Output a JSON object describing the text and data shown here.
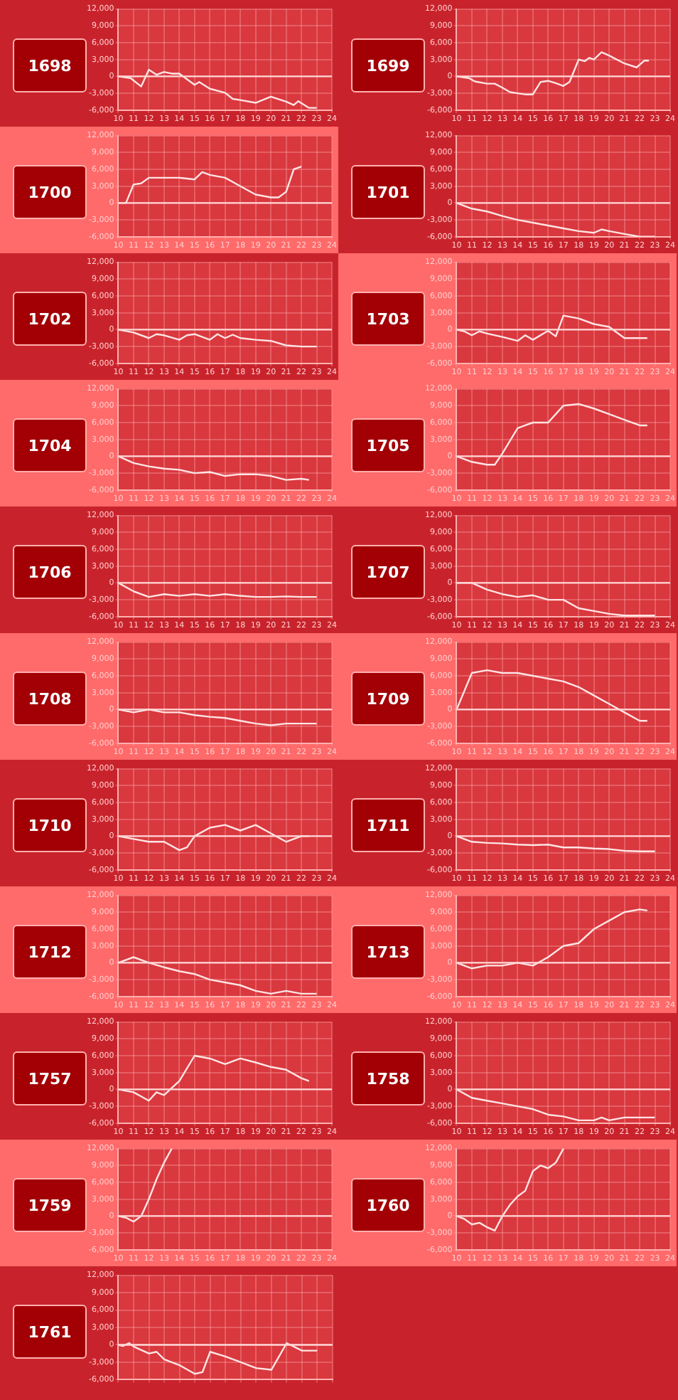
{
  "chart_data": [
    {
      "type": "line",
      "title": "1698",
      "x": [
        10,
        10.8,
        11.5,
        12,
        12.5,
        13,
        13.5,
        14,
        15,
        15.3,
        16,
        17,
        17.5,
        18,
        19,
        20,
        21,
        21.5,
        21.8,
        22.5,
        23
      ],
      "values": [
        0,
        -300,
        -1800,
        1200,
        300,
        800,
        500,
        500,
        -1500,
        -1000,
        -2200,
        -2900,
        -4000,
        -4200,
        -4700,
        -3600,
        -4500,
        -5100,
        -4400,
        -5600,
        -5600
      ],
      "color": "#ffe4e4",
      "xlim": [
        10,
        24
      ],
      "xticks": [
        10,
        11,
        12,
        13,
        14,
        15,
        16,
        17,
        18,
        19,
        20,
        21,
        22,
        23,
        24
      ],
      "ylim": [
        -6000,
        12000
      ],
      "yticks": [
        {
          "value": -6000,
          "label": "-6,000"
        },
        {
          "value": -3000,
          "label": "-3,000"
        },
        {
          "value": 0,
          "label": "0"
        },
        {
          "value": 3000,
          "label": "3,000"
        },
        {
          "value": 6000,
          "label": "6,000"
        },
        {
          "value": 9000,
          "label": "9,000"
        },
        {
          "value": 12000,
          "label": "12,000"
        }
      ],
      "grid": true,
      "ref_lines": [
        {
          "axis": "y",
          "value": 0,
          "color": "#ffd6d6"
        }
      ]
    },
    {
      "type": "line",
      "title": "1699",
      "x": [
        10,
        10.8,
        11.2,
        12,
        12.5,
        13,
        13.5,
        14,
        14.5,
        15,
        15.5,
        16,
        16.5,
        17,
        17.4,
        18,
        18.4,
        18.7,
        19,
        19.5,
        20,
        21,
        21.8,
        22.3,
        22.6
      ],
      "values": [
        0,
        -300,
        -900,
        -1300,
        -1300,
        -2000,
        -2800,
        -3000,
        -3200,
        -3200,
        -1000,
        -800,
        -1200,
        -1700,
        -1000,
        3000,
        2700,
        3300,
        3000,
        4300,
        3700,
        2300,
        1600,
        2800,
        2800
      ],
      "color": "#ffe4e4",
      "xlim": [
        10,
        24
      ],
      "xticks": [
        10,
        11,
        12,
        13,
        14,
        15,
        16,
        17,
        18,
        19,
        20,
        21,
        22,
        23,
        24
      ],
      "ylim": [
        -6000,
        12000
      ],
      "yticks": [
        {
          "value": -6000,
          "label": "-6,000"
        },
        {
          "value": -3000,
          "label": "-3,000"
        },
        {
          "value": 0,
          "label": "0"
        },
        {
          "value": 3000,
          "label": "3,000"
        },
        {
          "value": 6000,
          "label": "6,000"
        },
        {
          "value": 9000,
          "label": "9,000"
        },
        {
          "value": 12000,
          "label": "12,000"
        }
      ],
      "grid": true,
      "ref_lines": [
        {
          "axis": "y",
          "value": 0,
          "color": "#ffd6d6"
        }
      ]
    },
    {
      "type": "line",
      "title": "1700",
      "x": [
        10,
        10.5,
        11,
        11.5,
        12,
        14,
        15,
        15.5,
        16,
        17,
        18,
        19,
        20,
        20.5,
        21,
        21.5,
        22
      ],
      "values": [
        0,
        0,
        3300,
        3500,
        4500,
        4500,
        4200,
        5500,
        5000,
        4500,
        3000,
        1500,
        1000,
        1000,
        2000,
        6000,
        6500
      ],
      "color": "#ffe4e4",
      "xlim": [
        10,
        24
      ],
      "xticks": [
        10,
        11,
        12,
        13,
        14,
        15,
        16,
        17,
        18,
        19,
        20,
        21,
        22,
        23,
        24
      ],
      "ylim": [
        -6000,
        12000
      ],
      "yticks": [
        {
          "value": -6000,
          "label": "-6,000"
        },
        {
          "value": -3000,
          "label": "-3,000"
        },
        {
          "value": 0,
          "label": "0"
        },
        {
          "value": 3000,
          "label": "3,000"
        },
        {
          "value": 6000,
          "label": "6,000"
        },
        {
          "value": 9000,
          "label": "9,000"
        },
        {
          "value": 12000,
          "label": "12,000"
        }
      ],
      "grid": true,
      "ref_lines": [
        {
          "axis": "y",
          "value": 0,
          "color": "#ffd6d6"
        }
      ]
    },
    {
      "type": "line",
      "title": "1701",
      "x": [
        10,
        11,
        12,
        13,
        14,
        15,
        16,
        17,
        18,
        19,
        19.5,
        20,
        21,
        22,
        23
      ],
      "values": [
        0,
        -1000,
        -1500,
        -2300,
        -3000,
        -3500,
        -4000,
        -4500,
        -5000,
        -5300,
        -4700,
        -5000,
        -5500,
        -6000,
        -6000
      ],
      "color": "#ffe4e4",
      "xlim": [
        10,
        24
      ],
      "xticks": [
        10,
        11,
        12,
        13,
        14,
        15,
        16,
        17,
        18,
        19,
        20,
        21,
        22,
        23,
        24
      ],
      "ylim": [
        -6000,
        12000
      ],
      "yticks": [
        {
          "value": -6000,
          "label": "-6,000"
        },
        {
          "value": -3000,
          "label": "-3,000"
        },
        {
          "value": 0,
          "label": "0"
        },
        {
          "value": 3000,
          "label": "3,000"
        },
        {
          "value": 6000,
          "label": "6,000"
        },
        {
          "value": 9000,
          "label": "9,000"
        },
        {
          "value": 12000,
          "label": "12,000"
        }
      ],
      "grid": true,
      "ref_lines": [
        {
          "axis": "y",
          "value": 0,
          "color": "#ffd6d6"
        }
      ]
    },
    {
      "type": "line",
      "title": "1702",
      "x": [
        10,
        11,
        12,
        12.5,
        13,
        14,
        14.5,
        15,
        16,
        16.5,
        17,
        17.5,
        18,
        19,
        20,
        21,
        22,
        23
      ],
      "values": [
        0,
        -500,
        -1500,
        -800,
        -1000,
        -1800,
        -1000,
        -800,
        -1800,
        -800,
        -1500,
        -900,
        -1500,
        -1800,
        -2000,
        -2800,
        -3000,
        -3000
      ],
      "color": "#ffe4e4",
      "xlim": [
        10,
        24
      ],
      "xticks": [
        10,
        11,
        12,
        13,
        14,
        15,
        16,
        17,
        18,
        19,
        20,
        21,
        22,
        23,
        24
      ],
      "ylim": [
        -6000,
        12000
      ],
      "yticks": [
        {
          "value": -6000,
          "label": "-6,000"
        },
        {
          "value": -3000,
          "label": "-3,000"
        },
        {
          "value": 0,
          "label": "0"
        },
        {
          "value": 3000,
          "label": "3,000"
        },
        {
          "value": 6000,
          "label": "6,000"
        },
        {
          "value": 9000,
          "label": "9,000"
        },
        {
          "value": 12000,
          "label": "12,000"
        }
      ],
      "grid": true,
      "ref_lines": [
        {
          "axis": "y",
          "value": 0,
          "color": "#ffd6d6"
        }
      ]
    },
    {
      "type": "line",
      "title": "1703",
      "x": [
        10,
        10.5,
        11,
        11.5,
        12,
        13,
        14,
        14.5,
        15,
        16,
        16.5,
        17,
        18,
        19,
        20,
        21,
        22,
        22.5
      ],
      "values": [
        0,
        -300,
        -1000,
        -300,
        -700,
        -1300,
        -2000,
        -1000,
        -1800,
        -200,
        -1200,
        2500,
        2000,
        1000,
        500,
        -1500,
        -1500,
        -1500
      ],
      "color": "#ffe4e4",
      "xlim": [
        10,
        24
      ],
      "xticks": [
        10,
        11,
        12,
        13,
        14,
        15,
        16,
        17,
        18,
        19,
        20,
        21,
        22,
        23,
        24
      ],
      "ylim": [
        -6000,
        12000
      ],
      "yticks": [
        {
          "value": -6000,
          "label": "-6,000"
        },
        {
          "value": -3000,
          "label": "-3,000"
        },
        {
          "value": 0,
          "label": "0"
        },
        {
          "value": 3000,
          "label": "3,000"
        },
        {
          "value": 6000,
          "label": "6,000"
        },
        {
          "value": 9000,
          "label": "9,000"
        },
        {
          "value": 12000,
          "label": "12,000"
        }
      ],
      "grid": true,
      "ref_lines": [
        {
          "axis": "y",
          "value": 0,
          "color": "#ffd6d6"
        }
      ]
    },
    {
      "type": "line",
      "title": "1704",
      "x": [
        10,
        11,
        12,
        13,
        14,
        15,
        16,
        17,
        18,
        19,
        20,
        21,
        22,
        22.5
      ],
      "values": [
        0,
        -1200,
        -1800,
        -2200,
        -2400,
        -3000,
        -2800,
        -3500,
        -3200,
        -3200,
        -3500,
        -4200,
        -4000,
        -4200
      ],
      "color": "#ffe4e4",
      "xlim": [
        10,
        24
      ],
      "xticks": [
        10,
        11,
        12,
        13,
        14,
        15,
        16,
        17,
        18,
        19,
        20,
        21,
        22,
        23,
        24
      ],
      "ylim": [
        -6000,
        12000
      ],
      "yticks": [
        {
          "value": -6000,
          "label": "-6,000"
        },
        {
          "value": -3000,
          "label": "-3,000"
        },
        {
          "value": 0,
          "label": "0"
        },
        {
          "value": 3000,
          "label": "3,000"
        },
        {
          "value": 6000,
          "label": "6,000"
        },
        {
          "value": 9000,
          "label": "9,000"
        },
        {
          "value": 12000,
          "label": "12,000"
        }
      ],
      "grid": true,
      "ref_lines": [
        {
          "axis": "y",
          "value": 0,
          "color": "#ffd6d6"
        }
      ]
    },
    {
      "type": "line",
      "title": "1705",
      "x": [
        10,
        11,
        12,
        12.5,
        13,
        14,
        14.5,
        15,
        16,
        16.5,
        17,
        18,
        19,
        20,
        21,
        22,
        22.5
      ],
      "values": [
        0,
        -1000,
        -1500,
        -1500,
        500,
        5000,
        5500,
        6000,
        6000,
        7500,
        9000,
        9300,
        8500,
        7500,
        6500,
        5500,
        5500
      ],
      "color": "#ffe4e4",
      "xlim": [
        10,
        24
      ],
      "xticks": [
        10,
        11,
        12,
        13,
        14,
        15,
        16,
        17,
        18,
        19,
        20,
        21,
        22,
        23,
        24
      ],
      "ylim": [
        -6000,
        12000
      ],
      "yticks": [
        {
          "value": -6000,
          "label": "-6,000"
        },
        {
          "value": -3000,
          "label": "-3,000"
        },
        {
          "value": 0,
          "label": "0"
        },
        {
          "value": 3000,
          "label": "3,000"
        },
        {
          "value": 6000,
          "label": "6,000"
        },
        {
          "value": 9000,
          "label": "9,000"
        },
        {
          "value": 12000,
          "label": "12,000"
        }
      ],
      "grid": true,
      "ref_lines": [
        {
          "axis": "y",
          "value": 0,
          "color": "#ffd6d6"
        }
      ]
    },
    {
      "type": "line",
      "title": "1706",
      "x": [
        10,
        11,
        12,
        13,
        14,
        15,
        16,
        17,
        18,
        19,
        20,
        21,
        22,
        23
      ],
      "values": [
        0,
        -1500,
        -2500,
        -2000,
        -2300,
        -2000,
        -2300,
        -2000,
        -2300,
        -2500,
        -2500,
        -2400,
        -2500,
        -2500
      ],
      "color": "#ffe4e4",
      "xlim": [
        10,
        24
      ],
      "xticks": [
        10,
        11,
        12,
        13,
        14,
        15,
        16,
        17,
        18,
        19,
        20,
        21,
        22,
        23,
        24
      ],
      "ylim": [
        -6000,
        12000
      ],
      "yticks": [
        {
          "value": -6000,
          "label": "-6,000"
        },
        {
          "value": -3000,
          "label": "-3,000"
        },
        {
          "value": 0,
          "label": "0"
        },
        {
          "value": 3000,
          "label": "3,000"
        },
        {
          "value": 6000,
          "label": "6,000"
        },
        {
          "value": 9000,
          "label": "9,000"
        },
        {
          "value": 12000,
          "label": "12,000"
        }
      ],
      "grid": true,
      "ref_lines": [
        {
          "axis": "y",
          "value": 0,
          "color": "#ffd6d6"
        }
      ]
    },
    {
      "type": "line",
      "title": "1707",
      "x": [
        10,
        11,
        12,
        13,
        14,
        15,
        16,
        17,
        18,
        19,
        20,
        21,
        22,
        23
      ],
      "values": [
        0,
        0,
        -1200,
        -2000,
        -2500,
        -2200,
        -3000,
        -3000,
        -4500,
        -5000,
        -5500,
        -5800,
        -5800,
        -5800
      ],
      "color": "#ffe4e4",
      "xlim": [
        10,
        24
      ],
      "xticks": [
        10,
        11,
        12,
        13,
        14,
        15,
        16,
        17,
        18,
        19,
        20,
        21,
        22,
        23,
        24
      ],
      "ylim": [
        -6000,
        12000
      ],
      "yticks": [
        {
          "value": -6000,
          "label": "-6,000"
        },
        {
          "value": -3000,
          "label": "-3,000"
        },
        {
          "value": 0,
          "label": "0"
        },
        {
          "value": 3000,
          "label": "3,000"
        },
        {
          "value": 6000,
          "label": "6,000"
        },
        {
          "value": 9000,
          "label": "9,000"
        },
        {
          "value": 12000,
          "label": "12,000"
        }
      ],
      "grid": true,
      "ref_lines": [
        {
          "axis": "y",
          "value": 0,
          "color": "#ffd6d6"
        }
      ]
    },
    {
      "type": "line",
      "title": "1708",
      "x": [
        10,
        11,
        12,
        13,
        14,
        15,
        16,
        17,
        18,
        19,
        20,
        21,
        22,
        23
      ],
      "values": [
        0,
        -500,
        0,
        -500,
        -500,
        -1000,
        -1300,
        -1500,
        -2000,
        -2500,
        -2800,
        -2500,
        -2500,
        -2500
      ],
      "color": "#ffe4e4",
      "xlim": [
        10,
        24
      ],
      "xticks": [
        10,
        11,
        12,
        13,
        14,
        15,
        16,
        17,
        18,
        19,
        20,
        21,
        22,
        23,
        24
      ],
      "ylim": [
        -6000,
        12000
      ],
      "yticks": [
        {
          "value": -6000,
          "label": "-6,000"
        },
        {
          "value": -3000,
          "label": "-3,000"
        },
        {
          "value": 0,
          "label": "0"
        },
        {
          "value": 3000,
          "label": "3,000"
        },
        {
          "value": 6000,
          "label": "6,000"
        },
        {
          "value": 9000,
          "label": "9,000"
        },
        {
          "value": 12000,
          "label": "12,000"
        }
      ],
      "grid": true,
      "ref_lines": [
        {
          "axis": "y",
          "value": 0,
          "color": "#ffd6d6"
        }
      ]
    },
    {
      "type": "line",
      "title": "1709",
      "x": [
        10,
        11,
        12,
        13,
        14,
        15,
        16,
        17,
        18,
        19,
        20,
        21,
        22,
        22.5
      ],
      "values": [
        0,
        6500,
        7000,
        6500,
        6500,
        6000,
        5500,
        5000,
        4000,
        2500,
        1000,
        -500,
        -2000,
        -2000
      ],
      "color": "#ffe4e4",
      "xlim": [
        10,
        24
      ],
      "xticks": [
        10,
        11,
        12,
        13,
        14,
        15,
        16,
        17,
        18,
        19,
        20,
        21,
        22,
        23,
        24
      ],
      "ylim": [
        -6000,
        12000
      ],
      "yticks": [
        {
          "value": -6000,
          "label": "-6,000"
        },
        {
          "value": -3000,
          "label": "-3,000"
        },
        {
          "value": 0,
          "label": "0"
        },
        {
          "value": 3000,
          "label": "3,000"
        },
        {
          "value": 6000,
          "label": "6,000"
        },
        {
          "value": 9000,
          "label": "9,000"
        },
        {
          "value": 12000,
          "label": "12,000"
        }
      ],
      "grid": true,
      "ref_lines": [
        {
          "axis": "y",
          "value": 0,
          "color": "#ffd6d6"
        }
      ]
    },
    {
      "type": "line",
      "title": "1710",
      "x": [
        10,
        11,
        12,
        13,
        14,
        14.5,
        15,
        16,
        17,
        18,
        19,
        20,
        21,
        22,
        22.5
      ],
      "values": [
        0,
        -500,
        -1000,
        -1000,
        -2500,
        -2000,
        0,
        1500,
        2000,
        1000,
        2000,
        500,
        -1000,
        0,
        0
      ],
      "color": "#ffe4e4",
      "xlim": [
        10,
        24
      ],
      "xticks": [
        10,
        11,
        12,
        13,
        14,
        15,
        16,
        17,
        18,
        19,
        20,
        21,
        22,
        23,
        24
      ],
      "ylim": [
        -6000,
        12000
      ],
      "yticks": [
        {
          "value": -6000,
          "label": "-6,000"
        },
        {
          "value": -3000,
          "label": "-3,000"
        },
        {
          "value": 0,
          "label": "0"
        },
        {
          "value": 3000,
          "label": "3,000"
        },
        {
          "value": 6000,
          "label": "6,000"
        },
        {
          "value": 9000,
          "label": "9,000"
        },
        {
          "value": 12000,
          "label": "12,000"
        }
      ],
      "grid": true,
      "ref_lines": [
        {
          "axis": "y",
          "value": 0,
          "color": "#ffd6d6"
        }
      ]
    },
    {
      "type": "line",
      "title": "1711",
      "x": [
        10,
        11,
        12,
        13,
        14,
        15,
        16,
        17,
        18,
        19,
        20,
        21,
        22,
        23
      ],
      "values": [
        0,
        -1000,
        -1200,
        -1300,
        -1500,
        -1600,
        -1500,
        -2000,
        -2000,
        -2200,
        -2300,
        -2600,
        -2700,
        -2700
      ],
      "color": "#ffe4e4",
      "xlim": [
        10,
        24
      ],
      "xticks": [
        10,
        11,
        12,
        13,
        14,
        15,
        16,
        17,
        18,
        19,
        20,
        21,
        22,
        23,
        24
      ],
      "ylim": [
        -6000,
        12000
      ],
      "yticks": [
        {
          "value": -6000,
          "label": "-6,000"
        },
        {
          "value": -3000,
          "label": "-3,000"
        },
        {
          "value": 0,
          "label": "0"
        },
        {
          "value": 3000,
          "label": "3,000"
        },
        {
          "value": 6000,
          "label": "6,000"
        },
        {
          "value": 9000,
          "label": "9,000"
        },
        {
          "value": 12000,
          "label": "12,000"
        }
      ],
      "grid": true,
      "ref_lines": [
        {
          "axis": "y",
          "value": 0,
          "color": "#ffd6d6"
        }
      ]
    },
    {
      "type": "line",
      "title": "1712",
      "x": [
        10,
        11,
        12,
        13,
        14,
        15,
        16,
        17,
        18,
        19,
        20,
        21,
        22,
        23
      ],
      "values": [
        0,
        1000,
        0,
        -800,
        -1500,
        -2000,
        -3000,
        -3500,
        -4000,
        -5000,
        -5500,
        -5000,
        -5500,
        -5500
      ],
      "color": "#ffe4e4",
      "xlim": [
        10,
        24
      ],
      "xticks": [
        10,
        11,
        12,
        13,
        14,
        15,
        16,
        17,
        18,
        19,
        20,
        21,
        22,
        23,
        24
      ],
      "ylim": [
        -6000,
        12000
      ],
      "yticks": [
        {
          "value": -6000,
          "label": "-6,000"
        },
        {
          "value": -3000,
          "label": "-3,000"
        },
        {
          "value": 0,
          "label": "0"
        },
        {
          "value": 3000,
          "label": "3,000"
        },
        {
          "value": 6000,
          "label": "6,000"
        },
        {
          "value": 9000,
          "label": "9,000"
        },
        {
          "value": 12000,
          "label": "12,000"
        }
      ],
      "grid": true,
      "ref_lines": [
        {
          "axis": "y",
          "value": 0,
          "color": "#ffd6d6"
        }
      ]
    },
    {
      "type": "line",
      "title": "1713",
      "x": [
        10,
        11,
        12,
        13,
        14,
        15,
        16,
        17,
        18,
        19,
        20,
        21,
        22,
        22.5
      ],
      "values": [
        0,
        -1000,
        -500,
        -500,
        0,
        -500,
        1000,
        3000,
        3500,
        6000,
        7500,
        9000,
        9500,
        9300
      ],
      "color": "#ffe4e4",
      "xlim": [
        10,
        24
      ],
      "xticks": [
        10,
        11,
        12,
        13,
        14,
        15,
        16,
        17,
        18,
        19,
        20,
        21,
        22,
        23,
        24
      ],
      "ylim": [
        -6000,
        12000
      ],
      "yticks": [
        {
          "value": -6000,
          "label": "-6,000"
        },
        {
          "value": -3000,
          "label": "-3,000"
        },
        {
          "value": 0,
          "label": "0"
        },
        {
          "value": 3000,
          "label": "3,000"
        },
        {
          "value": 6000,
          "label": "6,000"
        },
        {
          "value": 9000,
          "label": "9,000"
        },
        {
          "value": 12000,
          "label": "12,000"
        }
      ],
      "grid": true,
      "ref_lines": [
        {
          "axis": "y",
          "value": 0,
          "color": "#ffd6d6"
        }
      ]
    },
    {
      "type": "line",
      "title": "1757",
      "x": [
        10,
        11,
        12,
        12.5,
        13,
        14,
        15,
        16,
        17,
        18,
        19,
        20,
        21,
        22,
        22.5
      ],
      "values": [
        0,
        -500,
        -2000,
        -500,
        -1000,
        1500,
        6000,
        5500,
        4500,
        5500,
        4800,
        4000,
        3500,
        2000,
        1500
      ],
      "color": "#ffe4e4",
      "xlim": [
        10,
        24
      ],
      "xticks": [
        10,
        11,
        12,
        13,
        14,
        15,
        16,
        17,
        18,
        19,
        20,
        21,
        22,
        23,
        24
      ],
      "ylim": [
        -6000,
        12000
      ],
      "yticks": [
        {
          "value": -6000,
          "label": "-6,000"
        },
        {
          "value": -3000,
          "label": "-3,000"
        },
        {
          "value": 0,
          "label": "0"
        },
        {
          "value": 3000,
          "label": "3,000"
        },
        {
          "value": 6000,
          "label": "6,000"
        },
        {
          "value": 9000,
          "label": "9,000"
        },
        {
          "value": 12000,
          "label": "12,000"
        }
      ],
      "grid": true,
      "ref_lines": [
        {
          "axis": "y",
          "value": 0,
          "color": "#ffd6d6"
        }
      ]
    },
    {
      "type": "line",
      "title": "1758",
      "x": [
        10,
        11,
        12,
        13,
        14,
        15,
        16,
        17,
        18,
        19,
        19.5,
        20,
        21,
        22,
        23
      ],
      "values": [
        0,
        -1500,
        -2000,
        -2500,
        -3000,
        -3500,
        -4500,
        -4800,
        -5500,
        -5500,
        -5000,
        -5500,
        -5000,
        -5000,
        -5000
      ],
      "color": "#ffe4e4",
      "xlim": [
        10,
        24
      ],
      "xticks": [
        10,
        11,
        12,
        13,
        14,
        15,
        16,
        17,
        18,
        19,
        20,
        21,
        22,
        23,
        24
      ],
      "ylim": [
        -6000,
        12000
      ],
      "yticks": [
        {
          "value": -6000,
          "label": "-6,000"
        },
        {
          "value": -3000,
          "label": "-3,000"
        },
        {
          "value": 0,
          "label": "0"
        },
        {
          "value": 3000,
          "label": "3,000"
        },
        {
          "value": 6000,
          "label": "6,000"
        },
        {
          "value": 9000,
          "label": "9,000"
        },
        {
          "value": 12000,
          "label": "12,000"
        }
      ],
      "grid": true,
      "ref_lines": [
        {
          "axis": "y",
          "value": 0,
          "color": "#ffd6d6"
        }
      ]
    },
    {
      "type": "line",
      "title": "1759",
      "x": [
        10,
        10.5,
        11,
        11.5,
        12,
        12.5,
        13,
        13.5
      ],
      "values": [
        0,
        -300,
        -1000,
        0,
        3000,
        6500,
        9500,
        12000
      ],
      "color": "#ffe4e4",
      "xlim": [
        10,
        24
      ],
      "xticks": [
        10,
        11,
        12,
        13,
        14,
        15,
        16,
        17,
        18,
        19,
        20,
        21,
        22,
        23,
        24
      ],
      "ylim": [
        -6000,
        12000
      ],
      "yticks": [
        {
          "value": -6000,
          "label": "-6,000"
        },
        {
          "value": -3000,
          "label": "-3,000"
        },
        {
          "value": 0,
          "label": "0"
        },
        {
          "value": 3000,
          "label": "3,000"
        },
        {
          "value": 6000,
          "label": "6,000"
        },
        {
          "value": 9000,
          "label": "9,000"
        },
        {
          "value": 12000,
          "label": "12,000"
        }
      ],
      "grid": true,
      "ref_lines": [
        {
          "axis": "y",
          "value": 0,
          "color": "#ffd6d6"
        }
      ]
    },
    {
      "type": "line",
      "title": "1760",
      "x": [
        10,
        10.5,
        11,
        11.5,
        12,
        12.5,
        13,
        13.5,
        14,
        14.5,
        15,
        15.5,
        16,
        16.5,
        17
      ],
      "values": [
        0,
        -500,
        -1500,
        -1200,
        -2000,
        -2600,
        0,
        2000,
        3500,
        4500,
        8000,
        9000,
        8500,
        9500,
        12000
      ],
      "color": "#ffe4e4",
      "xlim": [
        10,
        24
      ],
      "xticks": [
        10,
        11,
        12,
        13,
        14,
        15,
        16,
        17,
        18,
        19,
        20,
        21,
        22,
        23,
        24
      ],
      "ylim": [
        -6000,
        12000
      ],
      "yticks": [
        {
          "value": -6000,
          "label": "-6,000"
        },
        {
          "value": -3000,
          "label": "-3,000"
        },
        {
          "value": 0,
          "label": "0"
        },
        {
          "value": 3000,
          "label": "3,000"
        },
        {
          "value": 6000,
          "label": "6,000"
        },
        {
          "value": 9000,
          "label": "9,000"
        },
        {
          "value": 12000,
          "label": "12,000"
        }
      ],
      "grid": true,
      "ref_lines": [
        {
          "axis": "y",
          "value": 0,
          "color": "#ffd6d6"
        }
      ]
    },
    {
      "type": "line",
      "title": "1761",
      "x": [
        10,
        10.3,
        10.7,
        11,
        12,
        12.5,
        13,
        14,
        15,
        15.5,
        16,
        17,
        18,
        19,
        20,
        21,
        22,
        23
      ],
      "values": [
        0,
        -200,
        300,
        -300,
        -1500,
        -1200,
        -2500,
        -3500,
        -5000,
        -4700,
        -1200,
        -2000,
        -3000,
        -4000,
        -4300,
        300,
        -1000,
        -1000
      ],
      "color": "#ffe4e4",
      "xlim": [
        10,
        24
      ],
      "xticks": [
        {
          "value": 10,
          "label": null
        },
        {
          "value": 11,
          "label": null
        },
        {
          "value": 12,
          "label": null
        },
        {
          "value": 13,
          "label": null
        },
        {
          "value": 14,
          "label": null
        },
        {
          "value": 15,
          "label": null
        },
        {
          "value": 16,
          "label": null
        },
        {
          "value": 17,
          "label": null
        },
        {
          "value": 18,
          "label": null
        },
        {
          "value": 19,
          "label": null
        },
        {
          "value": 20,
          "label": null
        },
        {
          "value": 21,
          "label": null
        },
        {
          "value": 22,
          "label": null
        },
        {
          "value": 23,
          "label": null
        },
        {
          "value": 24,
          "label": null
        }
      ],
      "tick_labels": "y",
      "ylim": [
        -6000,
        12000
      ],
      "yticks": [
        {
          "value": -6000,
          "label": "-6,000"
        },
        {
          "value": -3000,
          "label": "-3,000"
        },
        {
          "value": 0,
          "label": "0"
        },
        {
          "value": 3000,
          "label": "3,000"
        },
        {
          "value": 6000,
          "label": "6,000"
        },
        {
          "value": 9000,
          "label": "9,000"
        },
        {
          "value": 12000,
          "label": "12,000"
        }
      ],
      "grid": true,
      "ref_lines": [
        {
          "axis": "y",
          "value": 0,
          "color": "#ffd6d6"
        }
      ]
    }
  ]
}
